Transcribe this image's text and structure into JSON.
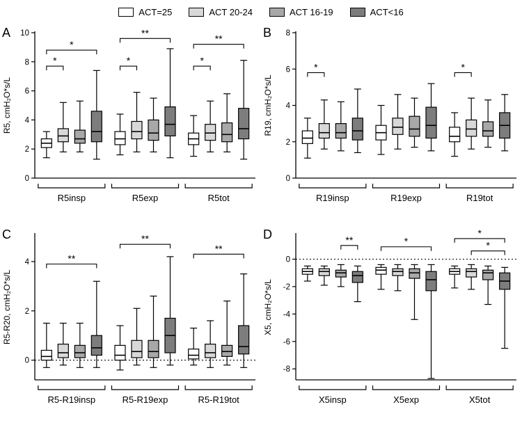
{
  "legend": {
    "items": [
      {
        "label": "ACT=25",
        "color": "#ffffff"
      },
      {
        "label": "ACT 20-24",
        "color": "#d8d8d8"
      },
      {
        "label": "ACT 16-19",
        "color": "#a8a8a8"
      },
      {
        "label": "ACT<16",
        "color": "#7d7d7d"
      }
    ]
  },
  "chart_data": [
    {
      "type": "box",
      "panel": "A",
      "ylabel": "R5, cmH₂O*s/L",
      "ylim": [
        0,
        10
      ],
      "yticks": [
        0,
        2,
        4,
        6,
        8,
        10
      ],
      "zero_line": false,
      "groups": [
        "R5insp",
        "R5exp",
        "R5tot"
      ],
      "series": [
        {
          "name": "ACT=25",
          "color": "#ffffff",
          "boxes": [
            [
              1.4,
              2.1,
              2.4,
              2.7,
              3.2
            ],
            [
              1.6,
              2.3,
              2.7,
              3.2,
              4.4
            ],
            [
              1.5,
              2.3,
              2.7,
              3.1,
              4.3
            ]
          ]
        },
        {
          "name": "ACT 20-24",
          "color": "#d8d8d8",
          "boxes": [
            [
              1.8,
              2.5,
              2.9,
              3.4,
              5.2
            ],
            [
              1.8,
              2.7,
              3.2,
              3.9,
              5.9
            ],
            [
              1.8,
              2.6,
              3.1,
              3.7,
              5.3
            ]
          ]
        },
        {
          "name": "ACT 16-19",
          "color": "#a8a8a8",
          "boxes": [
            [
              1.8,
              2.4,
              2.7,
              3.3,
              5.3
            ],
            [
              1.8,
              2.6,
              3.1,
              4.0,
              5.5
            ],
            [
              1.8,
              2.5,
              3.0,
              3.8,
              5.8
            ]
          ]
        },
        {
          "name": "ACT<16",
          "color": "#7d7d7d",
          "boxes": [
            [
              1.3,
              2.5,
              3.2,
              4.6,
              7.4
            ],
            [
              1.4,
              2.9,
              3.7,
              4.9,
              8.9
            ],
            [
              1.3,
              2.7,
              3.4,
              4.8,
              8.1
            ]
          ]
        }
      ],
      "brackets": [
        {
          "group": 0,
          "from": 0,
          "to": 1,
          "label": "*",
          "y": 7.7
        },
        {
          "group": 0,
          "from": 0,
          "to": 3,
          "label": "*",
          "y": 8.8
        },
        {
          "group": 1,
          "from": 0,
          "to": 1,
          "label": "*",
          "y": 7.7
        },
        {
          "group": 1,
          "from": 0,
          "to": 3,
          "label": "**",
          "y": 9.6
        },
        {
          "group": 2,
          "from": 0,
          "to": 1,
          "label": "*",
          "y": 7.7
        },
        {
          "group": 2,
          "from": 0,
          "to": 3,
          "label": "**",
          "y": 9.2
        }
      ]
    },
    {
      "type": "box",
      "panel": "B",
      "ylabel": "R19, cmH₂O*s/L",
      "ylim": [
        0,
        8
      ],
      "yticks": [
        0,
        2,
        4,
        6,
        8
      ],
      "zero_line": false,
      "groups": [
        "R19insp",
        "R19exp",
        "R19tot"
      ],
      "series": [
        {
          "name": "ACT=25",
          "color": "#ffffff",
          "boxes": [
            [
              1.1,
              1.9,
              2.2,
              2.6,
              3.3
            ],
            [
              1.3,
              2.1,
              2.5,
              2.9,
              4.0
            ],
            [
              1.2,
              2.0,
              2.3,
              2.8,
              3.6
            ]
          ]
        },
        {
          "name": "ACT 20-24",
          "color": "#d8d8d8",
          "boxes": [
            [
              1.6,
              2.2,
              2.5,
              3.0,
              4.3
            ],
            [
              1.6,
              2.4,
              2.8,
              3.3,
              4.6
            ],
            [
              1.6,
              2.3,
              2.7,
              3.2,
              4.4
            ]
          ]
        },
        {
          "name": "ACT 16-19",
          "color": "#a8a8a8",
          "boxes": [
            [
              1.5,
              2.2,
              2.5,
              3.0,
              4.2
            ],
            [
              1.7,
              2.3,
              2.7,
              3.4,
              4.4
            ],
            [
              1.7,
              2.3,
              2.6,
              3.1,
              4.3
            ]
          ]
        },
        {
          "name": "ACT<16",
          "color": "#7d7d7d",
          "boxes": [
            [
              1.4,
              2.1,
              2.6,
              3.3,
              4.9
            ],
            [
              1.5,
              2.2,
              2.9,
              3.9,
              5.2
            ],
            [
              1.5,
              2.2,
              2.9,
              3.6,
              4.6
            ]
          ]
        }
      ],
      "brackets": [
        {
          "group": 0,
          "from": 0,
          "to": 1,
          "label": "*",
          "y": 5.8
        },
        {
          "group": 2,
          "from": 0,
          "to": 1,
          "label": "*",
          "y": 5.8
        }
      ]
    },
    {
      "type": "box",
      "panel": "C",
      "ylabel": "R5-R20, cmH₂O*s/L",
      "ylim": [
        -0.8,
        5.1
      ],
      "yticks": [
        0,
        2,
        4
      ],
      "zero_line": true,
      "groups": [
        "R5-R19insp",
        "R5-R19exp",
        "R5-R19tot"
      ],
      "series": [
        {
          "name": "ACT=25",
          "color": "#ffffff",
          "boxes": [
            [
              -0.3,
              0.0,
              0.15,
              0.4,
              1.5
            ],
            [
              -0.4,
              0.0,
              0.2,
              0.6,
              1.4
            ],
            [
              -0.2,
              0.05,
              0.2,
              0.45,
              1.3
            ]
          ]
        },
        {
          "name": "ACT 20-24",
          "color": "#d8d8d8",
          "boxes": [
            [
              -0.2,
              0.1,
              0.3,
              0.65,
              1.5
            ],
            [
              -0.2,
              0.1,
              0.35,
              0.8,
              2.1
            ],
            [
              -0.3,
              0.1,
              0.3,
              0.65,
              1.6
            ]
          ]
        },
        {
          "name": "ACT 16-19",
          "color": "#a8a8a8",
          "boxes": [
            [
              -0.3,
              0.1,
              0.3,
              0.6,
              1.5
            ],
            [
              -0.3,
              0.1,
              0.35,
              0.8,
              2.6
            ],
            [
              -0.2,
              0.15,
              0.35,
              0.6,
              2.4
            ]
          ]
        },
        {
          "name": "ACT<16",
          "color": "#7d7d7d",
          "boxes": [
            [
              -0.3,
              0.2,
              0.5,
              1.0,
              3.2
            ],
            [
              -0.2,
              0.3,
              1.0,
              1.7,
              4.2
            ],
            [
              -0.3,
              0.25,
              0.55,
              1.4,
              3.5
            ]
          ]
        }
      ],
      "brackets": [
        {
          "group": 0,
          "from": 0,
          "to": 3,
          "label": "**",
          "y": 3.9
        },
        {
          "group": 1,
          "from": 0,
          "to": 3,
          "label": "**",
          "y": 4.7
        },
        {
          "group": 2,
          "from": 0,
          "to": 3,
          "label": "**",
          "y": 4.3
        }
      ]
    },
    {
      "type": "box",
      "panel": "D",
      "ylabel": "X5, cmH₂O*s/L",
      "ylim": [
        -8.8,
        1.8
      ],
      "yticks": [
        0,
        -2,
        -4,
        -6,
        -8
      ],
      "zero_line": true,
      "groups": [
        "X5insp",
        "X5exp",
        "X5tot"
      ],
      "series": [
        {
          "name": "ACT=25",
          "color": "#ffffff",
          "boxes": [
            [
              -1.6,
              -1.1,
              -0.9,
              -0.7,
              -0.5
            ],
            [
              -2.2,
              -1.1,
              -0.8,
              -0.6,
              -0.4
            ],
            [
              -2.1,
              -1.1,
              -0.9,
              -0.7,
              -0.5
            ]
          ]
        },
        {
          "name": "ACT 20-24",
          "color": "#d8d8d8",
          "boxes": [
            [
              -1.9,
              -1.2,
              -0.9,
              -0.7,
              -0.5
            ],
            [
              -2.3,
              -1.2,
              -0.9,
              -0.7,
              -0.4
            ],
            [
              -2.2,
              -1.3,
              -0.9,
              -0.7,
              -0.4
            ]
          ]
        },
        {
          "name": "ACT 16-19",
          "color": "#a8a8a8",
          "boxes": [
            [
              -2.0,
              -1.3,
              -1.0,
              -0.8,
              -0.4
            ],
            [
              -4.4,
              -1.4,
              -1.0,
              -0.7,
              -0.4
            ],
            [
              -3.3,
              -1.5,
              -1.0,
              -0.8,
              -0.5
            ]
          ]
        },
        {
          "name": "ACT<16",
          "color": "#7d7d7d",
          "boxes": [
            [
              -3.1,
              -1.7,
              -1.2,
              -0.9,
              -0.5
            ],
            [
              -8.7,
              -2.3,
              -1.5,
              -0.9,
              -0.4
            ],
            [
              -6.5,
              -2.2,
              -1.6,
              -1.0,
              -0.6
            ]
          ]
        }
      ],
      "brackets": [
        {
          "group": 0,
          "from": 2,
          "to": 3,
          "label": "**",
          "y": 1.0
        },
        {
          "group": 1,
          "from": 0,
          "to": 3,
          "label": "*",
          "y": 0.9
        },
        {
          "group": 2,
          "from": 0,
          "to": 3,
          "label": "*",
          "y": 1.5
        },
        {
          "group": 2,
          "from": 1,
          "to": 3,
          "label": "*",
          "y": 0.6
        }
      ]
    }
  ]
}
